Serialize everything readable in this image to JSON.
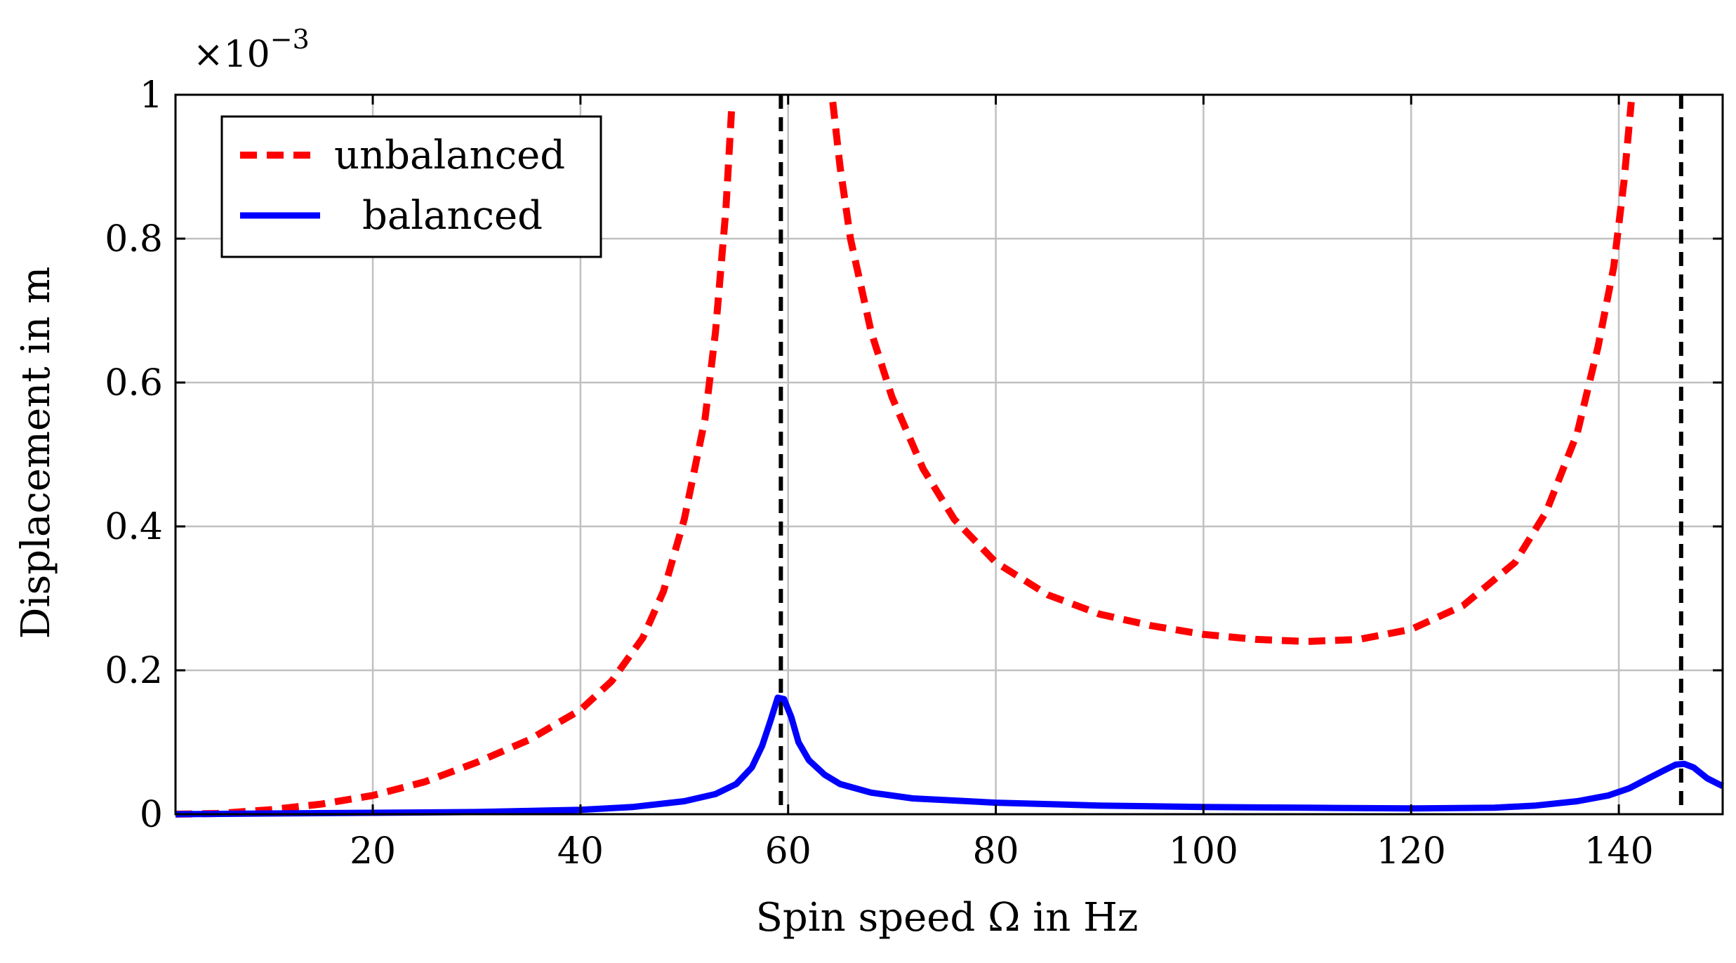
{
  "chart_data": {
    "type": "line",
    "xlabel": "Spin speed Ω in Hz",
    "ylabel": "Displacement in m",
    "y_multiplier": "×10",
    "y_multiplier_exp": "−3",
    "xlim": [
      1,
      150
    ],
    "ylim": [
      0,
      1
    ],
    "xticks": [
      20,
      40,
      60,
      80,
      100,
      120,
      140
    ],
    "yticks": [
      0,
      0.2,
      0.4,
      0.6,
      0.8,
      1
    ],
    "ytick_labels": [
      "0",
      "0.2",
      "0.4",
      "0.6",
      "0.8",
      "1"
    ],
    "grid": true,
    "legend_position": "top-left",
    "vertical_reference_lines": [
      59.3,
      146
    ],
    "series": [
      {
        "name": "unbalanced",
        "color": "#ff0000",
        "style": "dashed",
        "segments": [
          {
            "x": [
              1,
              5,
              10,
              15,
              20,
              25,
              30,
              35,
              40,
              43,
              46,
              48,
              50,
              52,
              53,
              54,
              54.6
            ],
            "y": [
              0.0,
              0.001,
              0.006,
              0.014,
              0.026,
              0.045,
              0.072,
              0.103,
              0.145,
              0.185,
              0.245,
              0.31,
              0.41,
              0.55,
              0.67,
              0.84,
              0.99
            ]
          },
          {
            "x": [
              64.3,
              65,
              66,
              68,
              70,
              73,
              76,
              80,
              85,
              90,
              95,
              100,
              105,
              110,
              115,
              120,
              125,
              130,
              133,
              136,
              138,
              139.5,
              140.5,
              141.2
            ],
            "y": [
              0.99,
              0.9,
              0.8,
              0.67,
              0.58,
              0.48,
              0.41,
              0.35,
              0.305,
              0.278,
              0.262,
              0.25,
              0.243,
              0.24,
              0.243,
              0.257,
              0.29,
              0.35,
              0.42,
              0.53,
              0.65,
              0.76,
              0.88,
              0.99
            ]
          }
        ]
      },
      {
        "name": "balanced",
        "color": "#0000ff",
        "style": "solid",
        "segments": [
          {
            "x": [
              1,
              10,
              20,
              30,
              40,
              45,
              50,
              53,
              55,
              56.5,
              57.5,
              58.3,
              59,
              59.6,
              60.3,
              61,
              62,
              63.5,
              65,
              68,
              72,
              80,
              90,
              100,
              110,
              120,
              128,
              132,
              136,
              139,
              141,
              143,
              144.5,
              145.5,
              146.3,
              147.2,
              148.5,
              150
            ],
            "y": [
              0.0,
              0.001,
              0.002,
              0.003,
              0.006,
              0.01,
              0.018,
              0.028,
              0.042,
              0.065,
              0.095,
              0.13,
              0.162,
              0.16,
              0.135,
              0.1,
              0.075,
              0.055,
              0.042,
              0.03,
              0.022,
              0.016,
              0.012,
              0.01,
              0.009,
              0.008,
              0.009,
              0.012,
              0.018,
              0.026,
              0.036,
              0.051,
              0.062,
              0.069,
              0.07,
              0.065,
              0.05,
              0.039
            ]
          }
        ]
      }
    ]
  }
}
